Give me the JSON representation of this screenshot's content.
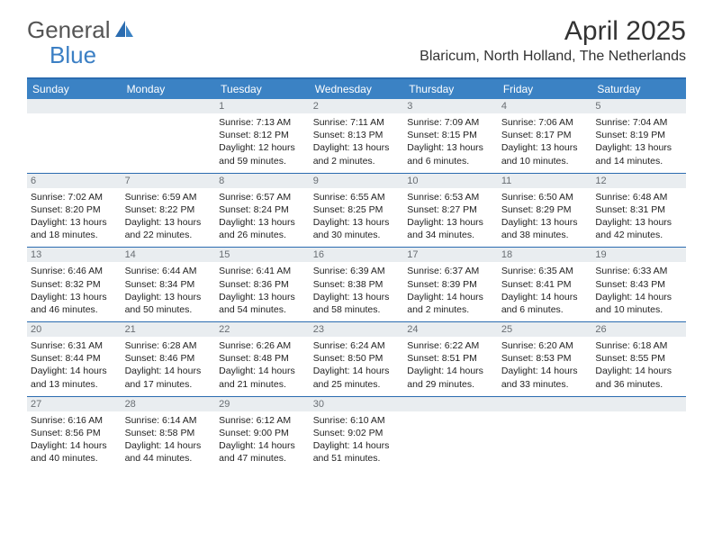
{
  "logo": {
    "text1": "General",
    "text2": "Blue"
  },
  "title": "April 2025",
  "location": "Blaricum, North Holland, The Netherlands",
  "colors": {
    "header_bar": "#3b82c4",
    "header_border": "#2b6cb0",
    "daynum_bg": "#e9edf0",
    "daynum_text": "#696e73",
    "logo_gray": "#555555",
    "logo_blue": "#3b7fc4",
    "text": "#222222",
    "background": "#ffffff"
  },
  "day_headers": [
    "Sunday",
    "Monday",
    "Tuesday",
    "Wednesday",
    "Thursday",
    "Friday",
    "Saturday"
  ],
  "weeks": [
    [
      {
        "n": "",
        "sr": "",
        "ss": "",
        "dl": ""
      },
      {
        "n": "",
        "sr": "",
        "ss": "",
        "dl": ""
      },
      {
        "n": "1",
        "sr": "Sunrise: 7:13 AM",
        "ss": "Sunset: 8:12 PM",
        "dl": "Daylight: 12 hours and 59 minutes."
      },
      {
        "n": "2",
        "sr": "Sunrise: 7:11 AM",
        "ss": "Sunset: 8:13 PM",
        "dl": "Daylight: 13 hours and 2 minutes."
      },
      {
        "n": "3",
        "sr": "Sunrise: 7:09 AM",
        "ss": "Sunset: 8:15 PM",
        "dl": "Daylight: 13 hours and 6 minutes."
      },
      {
        "n": "4",
        "sr": "Sunrise: 7:06 AM",
        "ss": "Sunset: 8:17 PM",
        "dl": "Daylight: 13 hours and 10 minutes."
      },
      {
        "n": "5",
        "sr": "Sunrise: 7:04 AM",
        "ss": "Sunset: 8:19 PM",
        "dl": "Daylight: 13 hours and 14 minutes."
      }
    ],
    [
      {
        "n": "6",
        "sr": "Sunrise: 7:02 AM",
        "ss": "Sunset: 8:20 PM",
        "dl": "Daylight: 13 hours and 18 minutes."
      },
      {
        "n": "7",
        "sr": "Sunrise: 6:59 AM",
        "ss": "Sunset: 8:22 PM",
        "dl": "Daylight: 13 hours and 22 minutes."
      },
      {
        "n": "8",
        "sr": "Sunrise: 6:57 AM",
        "ss": "Sunset: 8:24 PM",
        "dl": "Daylight: 13 hours and 26 minutes."
      },
      {
        "n": "9",
        "sr": "Sunrise: 6:55 AM",
        "ss": "Sunset: 8:25 PM",
        "dl": "Daylight: 13 hours and 30 minutes."
      },
      {
        "n": "10",
        "sr": "Sunrise: 6:53 AM",
        "ss": "Sunset: 8:27 PM",
        "dl": "Daylight: 13 hours and 34 minutes."
      },
      {
        "n": "11",
        "sr": "Sunrise: 6:50 AM",
        "ss": "Sunset: 8:29 PM",
        "dl": "Daylight: 13 hours and 38 minutes."
      },
      {
        "n": "12",
        "sr": "Sunrise: 6:48 AM",
        "ss": "Sunset: 8:31 PM",
        "dl": "Daylight: 13 hours and 42 minutes."
      }
    ],
    [
      {
        "n": "13",
        "sr": "Sunrise: 6:46 AM",
        "ss": "Sunset: 8:32 PM",
        "dl": "Daylight: 13 hours and 46 minutes."
      },
      {
        "n": "14",
        "sr": "Sunrise: 6:44 AM",
        "ss": "Sunset: 8:34 PM",
        "dl": "Daylight: 13 hours and 50 minutes."
      },
      {
        "n": "15",
        "sr": "Sunrise: 6:41 AM",
        "ss": "Sunset: 8:36 PM",
        "dl": "Daylight: 13 hours and 54 minutes."
      },
      {
        "n": "16",
        "sr": "Sunrise: 6:39 AM",
        "ss": "Sunset: 8:38 PM",
        "dl": "Daylight: 13 hours and 58 minutes."
      },
      {
        "n": "17",
        "sr": "Sunrise: 6:37 AM",
        "ss": "Sunset: 8:39 PM",
        "dl": "Daylight: 14 hours and 2 minutes."
      },
      {
        "n": "18",
        "sr": "Sunrise: 6:35 AM",
        "ss": "Sunset: 8:41 PM",
        "dl": "Daylight: 14 hours and 6 minutes."
      },
      {
        "n": "19",
        "sr": "Sunrise: 6:33 AM",
        "ss": "Sunset: 8:43 PM",
        "dl": "Daylight: 14 hours and 10 minutes."
      }
    ],
    [
      {
        "n": "20",
        "sr": "Sunrise: 6:31 AM",
        "ss": "Sunset: 8:44 PM",
        "dl": "Daylight: 14 hours and 13 minutes."
      },
      {
        "n": "21",
        "sr": "Sunrise: 6:28 AM",
        "ss": "Sunset: 8:46 PM",
        "dl": "Daylight: 14 hours and 17 minutes."
      },
      {
        "n": "22",
        "sr": "Sunrise: 6:26 AM",
        "ss": "Sunset: 8:48 PM",
        "dl": "Daylight: 14 hours and 21 minutes."
      },
      {
        "n": "23",
        "sr": "Sunrise: 6:24 AM",
        "ss": "Sunset: 8:50 PM",
        "dl": "Daylight: 14 hours and 25 minutes."
      },
      {
        "n": "24",
        "sr": "Sunrise: 6:22 AM",
        "ss": "Sunset: 8:51 PM",
        "dl": "Daylight: 14 hours and 29 minutes."
      },
      {
        "n": "25",
        "sr": "Sunrise: 6:20 AM",
        "ss": "Sunset: 8:53 PM",
        "dl": "Daylight: 14 hours and 33 minutes."
      },
      {
        "n": "26",
        "sr": "Sunrise: 6:18 AM",
        "ss": "Sunset: 8:55 PM",
        "dl": "Daylight: 14 hours and 36 minutes."
      }
    ],
    [
      {
        "n": "27",
        "sr": "Sunrise: 6:16 AM",
        "ss": "Sunset: 8:56 PM",
        "dl": "Daylight: 14 hours and 40 minutes."
      },
      {
        "n": "28",
        "sr": "Sunrise: 6:14 AM",
        "ss": "Sunset: 8:58 PM",
        "dl": "Daylight: 14 hours and 44 minutes."
      },
      {
        "n": "29",
        "sr": "Sunrise: 6:12 AM",
        "ss": "Sunset: 9:00 PM",
        "dl": "Daylight: 14 hours and 47 minutes."
      },
      {
        "n": "30",
        "sr": "Sunrise: 6:10 AM",
        "ss": "Sunset: 9:02 PM",
        "dl": "Daylight: 14 hours and 51 minutes."
      },
      {
        "n": "",
        "sr": "",
        "ss": "",
        "dl": ""
      },
      {
        "n": "",
        "sr": "",
        "ss": "",
        "dl": ""
      },
      {
        "n": "",
        "sr": "",
        "ss": "",
        "dl": ""
      }
    ]
  ]
}
